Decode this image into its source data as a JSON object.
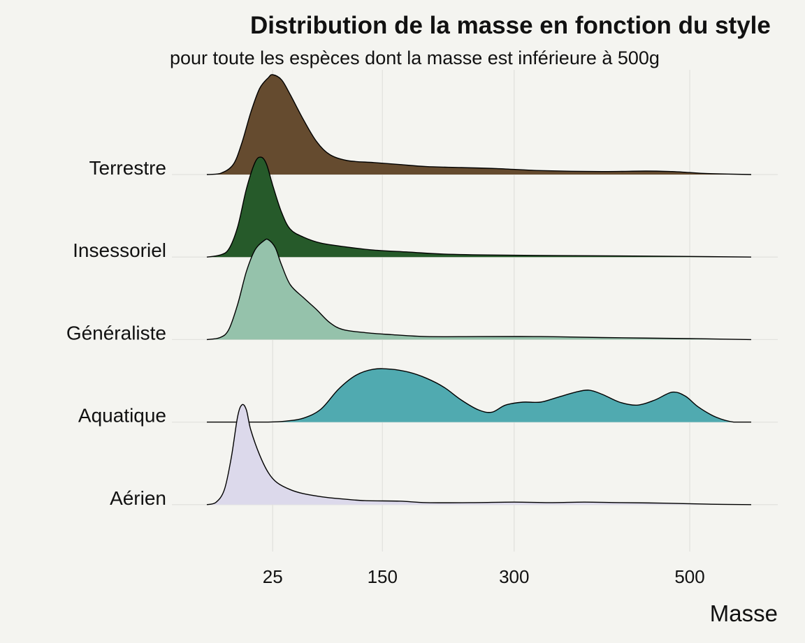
{
  "chart_data": {
    "type": "ridgeline",
    "title": "Distribution de la masse en fonction du style",
    "subtitle": "pour toute les espèces dont la masse est inférieure à 500g",
    "xlabel": "Masse",
    "ylabel": "",
    "x_ticks": [
      25,
      150,
      300,
      500
    ],
    "xlim": [
      -50,
      570
    ],
    "grid": true,
    "legend": "none",
    "series": [
      {
        "name": "Terrestre",
        "color": "#654b2f",
        "density": [
          [
            -50,
            0
          ],
          [
            -35,
            0.01
          ],
          [
            -20,
            0.1
          ],
          [
            -10,
            0.32
          ],
          [
            0,
            0.62
          ],
          [
            10,
            0.86
          ],
          [
            20,
            0.97
          ],
          [
            25,
            1.0
          ],
          [
            35,
            0.95
          ],
          [
            45,
            0.8
          ],
          [
            60,
            0.55
          ],
          [
            75,
            0.33
          ],
          [
            90,
            0.2
          ],
          [
            110,
            0.14
          ],
          [
            140,
            0.12
          ],
          [
            170,
            0.1
          ],
          [
            200,
            0.08
          ],
          [
            240,
            0.07
          ],
          [
            280,
            0.06
          ],
          [
            330,
            0.04
          ],
          [
            400,
            0.03
          ],
          [
            450,
            0.035
          ],
          [
            480,
            0.03
          ],
          [
            500,
            0.02
          ],
          [
            520,
            0.01
          ],
          [
            570,
            0
          ]
        ]
      },
      {
        "name": "Insessoriel",
        "color": "#265a2a",
        "density": [
          [
            -50,
            0
          ],
          [
            -35,
            0.02
          ],
          [
            -25,
            0.08
          ],
          [
            -15,
            0.3
          ],
          [
            -5,
            0.68
          ],
          [
            5,
            0.95
          ],
          [
            12,
            1.0
          ],
          [
            18,
            0.93
          ],
          [
            25,
            0.72
          ],
          [
            35,
            0.45
          ],
          [
            45,
            0.28
          ],
          [
            60,
            0.2
          ],
          [
            80,
            0.14
          ],
          [
            110,
            0.1
          ],
          [
            140,
            0.07
          ],
          [
            180,
            0.05
          ],
          [
            220,
            0.03
          ],
          [
            280,
            0.02
          ],
          [
            350,
            0.015
          ],
          [
            450,
            0.01
          ],
          [
            570,
            0
          ]
        ]
      },
      {
        "name": "Généraliste",
        "color": "#95c2ab",
        "density": [
          [
            -50,
            0
          ],
          [
            -35,
            0.02
          ],
          [
            -25,
            0.1
          ],
          [
            -15,
            0.35
          ],
          [
            -5,
            0.68
          ],
          [
            5,
            0.9
          ],
          [
            15,
            0.99
          ],
          [
            20,
            1.0
          ],
          [
            28,
            0.92
          ],
          [
            35,
            0.75
          ],
          [
            45,
            0.55
          ],
          [
            60,
            0.42
          ],
          [
            75,
            0.3
          ],
          [
            90,
            0.17
          ],
          [
            105,
            0.1
          ],
          [
            130,
            0.07
          ],
          [
            160,
            0.05
          ],
          [
            200,
            0.03
          ],
          [
            260,
            0.03
          ],
          [
            330,
            0.03
          ],
          [
            400,
            0.02
          ],
          [
            500,
            0.01
          ],
          [
            570,
            0
          ]
        ]
      },
      {
        "name": "Aquatique",
        "color": "#50aab0",
        "density": [
          [
            -50,
            0
          ],
          [
            0,
            0
          ],
          [
            20,
            0
          ],
          [
            40,
            0.01
          ],
          [
            60,
            0.04
          ],
          [
            80,
            0.13
          ],
          [
            100,
            0.33
          ],
          [
            120,
            0.47
          ],
          [
            140,
            0.53
          ],
          [
            160,
            0.53
          ],
          [
            180,
            0.5
          ],
          [
            200,
            0.44
          ],
          [
            220,
            0.35
          ],
          [
            240,
            0.22
          ],
          [
            260,
            0.12
          ],
          [
            275,
            0.1
          ],
          [
            290,
            0.17
          ],
          [
            310,
            0.2
          ],
          [
            330,
            0.2
          ],
          [
            350,
            0.25
          ],
          [
            370,
            0.3
          ],
          [
            385,
            0.32
          ],
          [
            400,
            0.28
          ],
          [
            420,
            0.2
          ],
          [
            440,
            0.17
          ],
          [
            460,
            0.22
          ],
          [
            480,
            0.3
          ],
          [
            495,
            0.26
          ],
          [
            510,
            0.15
          ],
          [
            530,
            0.05
          ],
          [
            550,
            0.0
          ],
          [
            570,
            0
          ]
        ]
      },
      {
        "name": "Aérien",
        "color": "#dcd9eb",
        "density": [
          [
            -50,
            0
          ],
          [
            -40,
            0.02
          ],
          [
            -30,
            0.15
          ],
          [
            -22,
            0.48
          ],
          [
            -15,
            0.88
          ],
          [
            -10,
            1.0
          ],
          [
            -5,
            0.95
          ],
          [
            0,
            0.75
          ],
          [
            10,
            0.5
          ],
          [
            20,
            0.32
          ],
          [
            30,
            0.22
          ],
          [
            45,
            0.15
          ],
          [
            60,
            0.11
          ],
          [
            80,
            0.08
          ],
          [
            100,
            0.06
          ],
          [
            130,
            0.04
          ],
          [
            170,
            0.035
          ],
          [
            200,
            0.02
          ],
          [
            250,
            0.02
          ],
          [
            300,
            0.025
          ],
          [
            340,
            0.02
          ],
          [
            380,
            0.025
          ],
          [
            420,
            0.02
          ],
          [
            470,
            0.015
          ],
          [
            520,
            0.005
          ],
          [
            570,
            0
          ]
        ]
      }
    ]
  }
}
